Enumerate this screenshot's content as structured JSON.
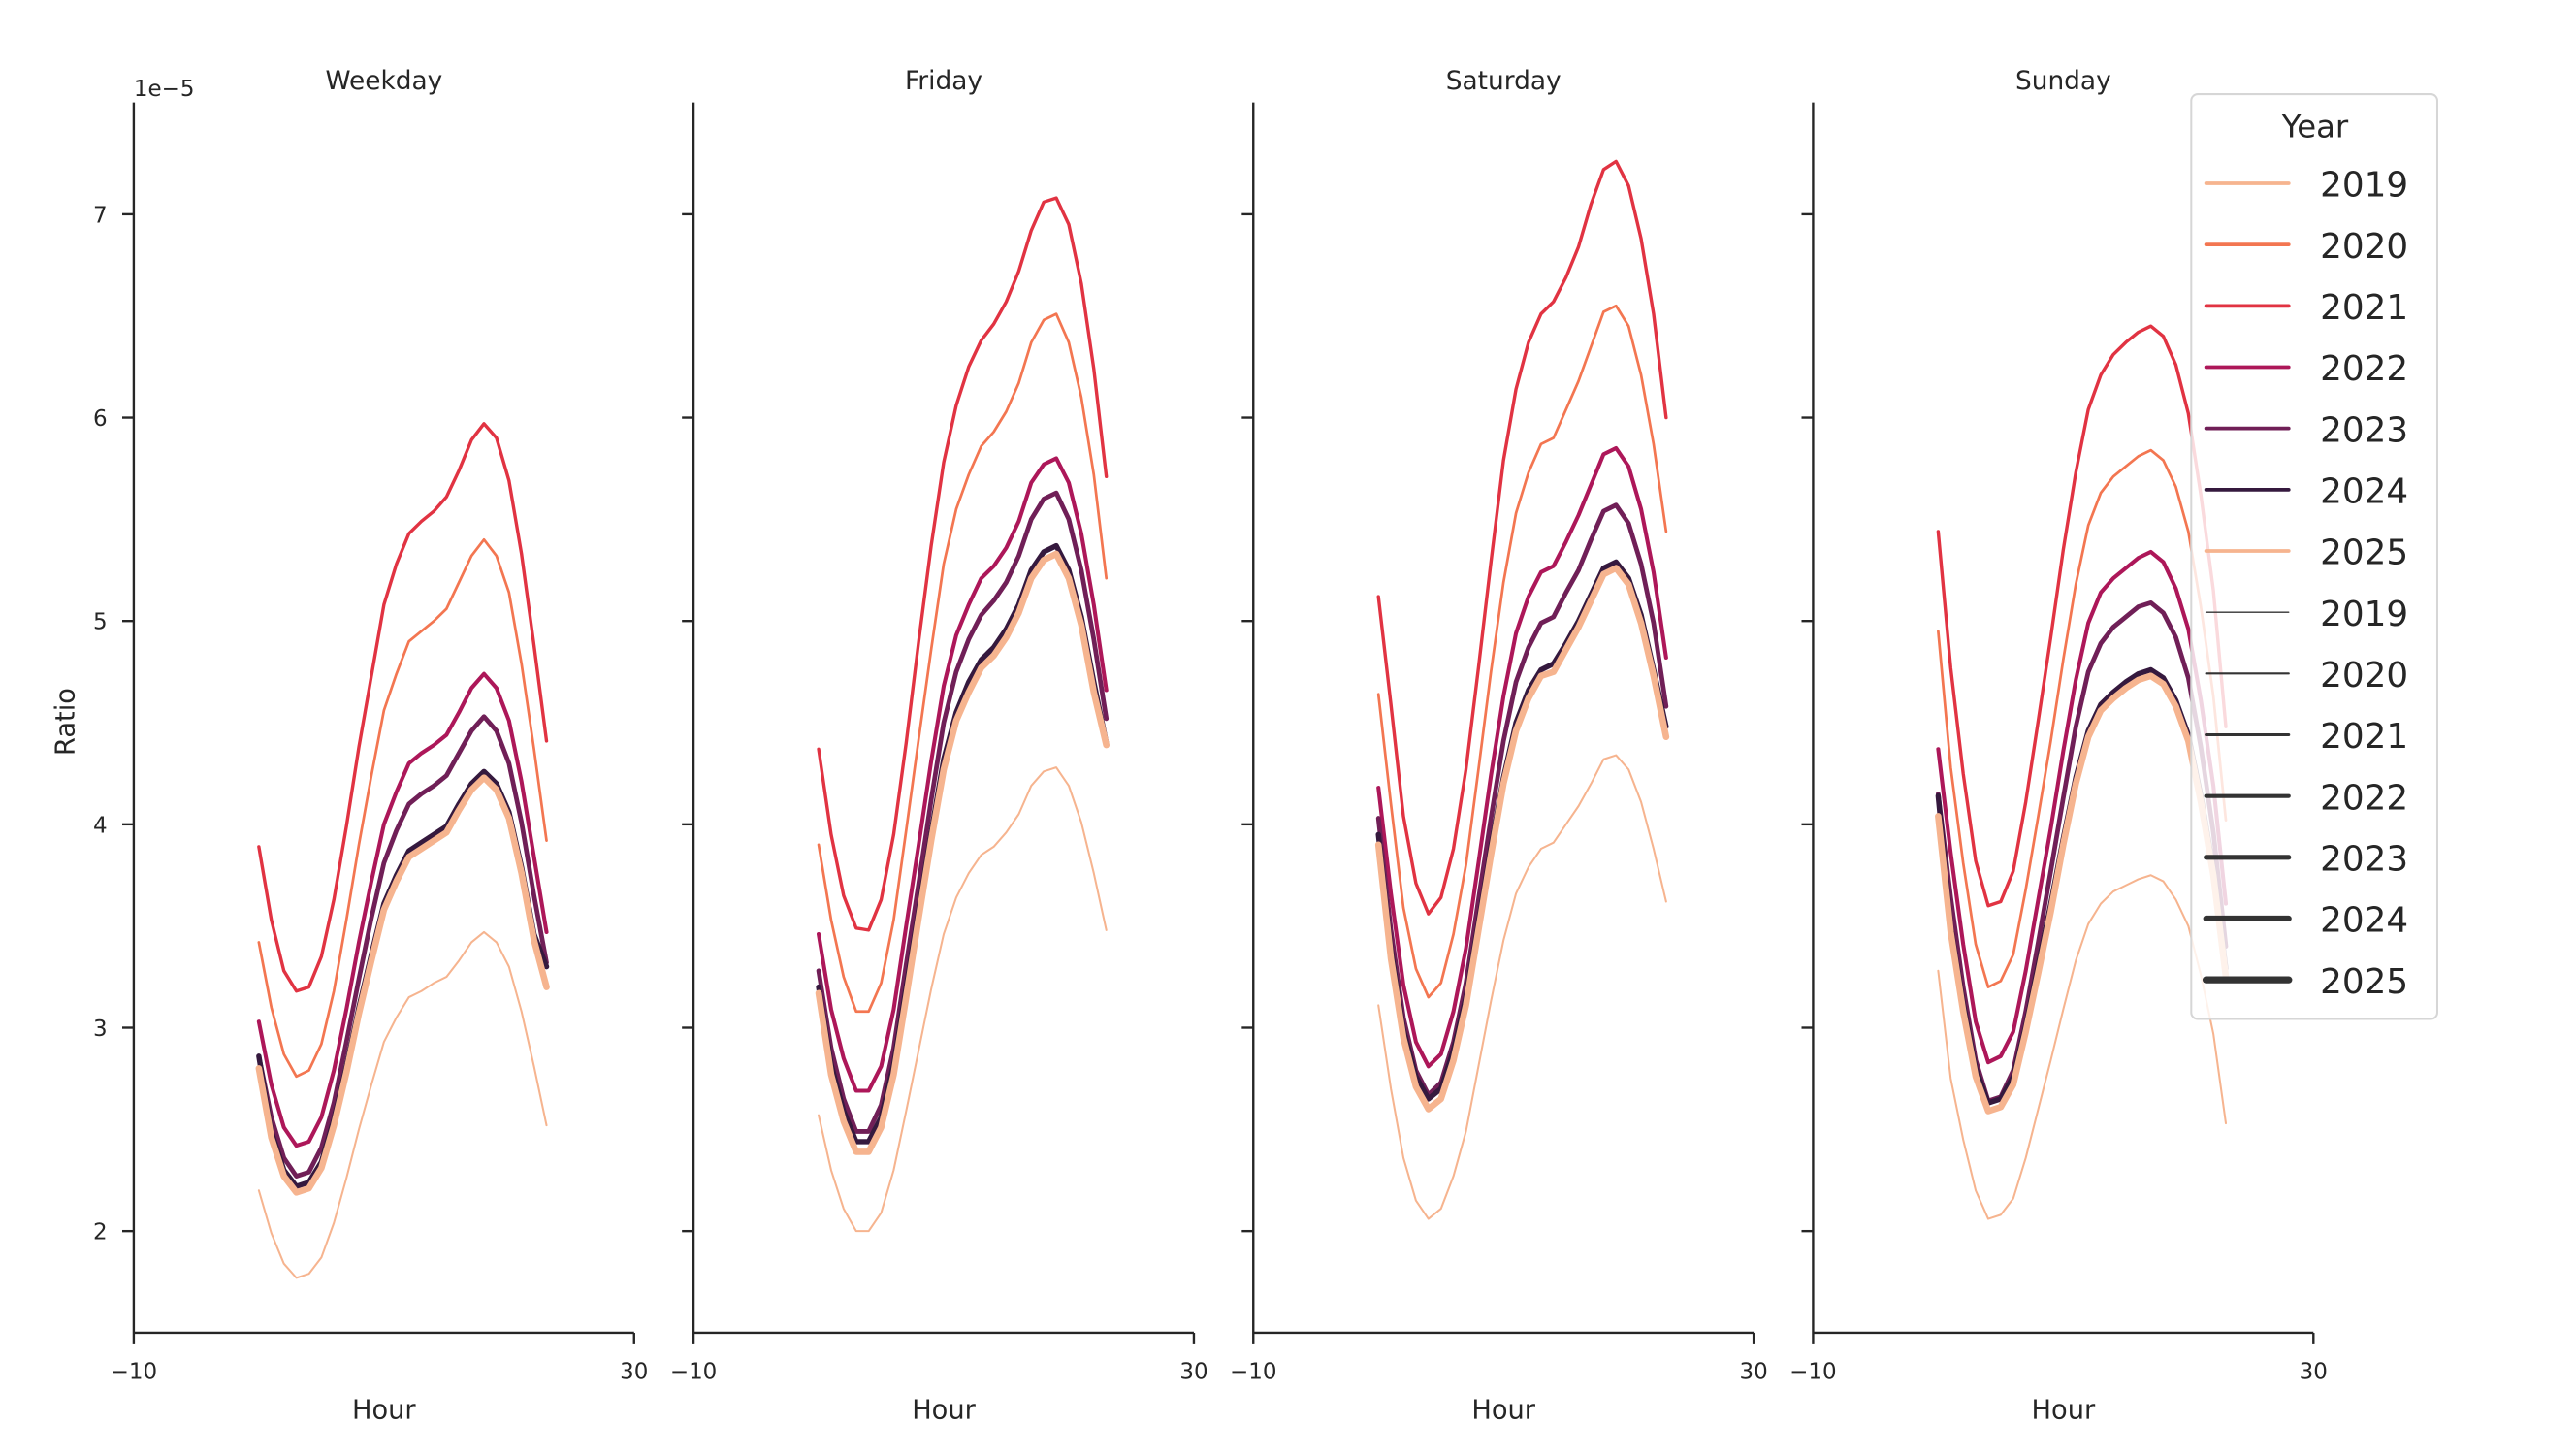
{
  "chart_data": [
    {
      "type": "line",
      "title": "Weekday",
      "xlabel": "Hour",
      "ylabel": "Ratio",
      "y_offset_label": "1e−5",
      "xlim": [
        -10,
        30
      ],
      "ylim": [
        1.5,
        7.55
      ],
      "xticks": [
        -10,
        30
      ],
      "xtick_labels": [
        "−10",
        "30"
      ],
      "yticks": [
        2,
        3,
        4,
        5,
        6,
        7
      ],
      "ytick_labels": [
        "2",
        "3",
        "4",
        "5",
        "6",
        "7"
      ],
      "grid": false,
      "x": [
        0,
        1,
        2,
        3,
        4,
        5,
        6,
        7,
        8,
        9,
        10,
        11,
        12,
        13,
        14,
        15,
        16,
        17,
        18,
        19,
        20,
        21,
        22,
        23
      ],
      "series": [
        {
          "name": "2019",
          "values": [
            2.2,
            1.99,
            1.84,
            1.77,
            1.79,
            1.87,
            2.04,
            2.26,
            2.5,
            2.72,
            2.93,
            3.05,
            3.15,
            3.18,
            3.22,
            3.25,
            3.33,
            3.42,
            3.47,
            3.42,
            3.3,
            3.08,
            2.81,
            2.52
          ]
        },
        {
          "name": "2020",
          "values": [
            3.42,
            3.1,
            2.87,
            2.76,
            2.79,
            2.92,
            3.18,
            3.53,
            3.9,
            4.24,
            4.56,
            4.74,
            4.9,
            4.95,
            5.0,
            5.06,
            5.19,
            5.32,
            5.4,
            5.32,
            5.14,
            4.79,
            4.37,
            3.92
          ]
        },
        {
          "name": "2021",
          "values": [
            3.89,
            3.53,
            3.28,
            3.18,
            3.2,
            3.35,
            3.63,
            3.99,
            4.38,
            4.73,
            5.08,
            5.28,
            5.43,
            5.49,
            5.54,
            5.61,
            5.74,
            5.89,
            5.97,
            5.9,
            5.69,
            5.33,
            4.88,
            4.41
          ]
        },
        {
          "name": "2022",
          "values": [
            3.03,
            2.72,
            2.51,
            2.42,
            2.44,
            2.56,
            2.79,
            3.09,
            3.42,
            3.72,
            4.0,
            4.16,
            4.3,
            4.35,
            4.39,
            4.44,
            4.55,
            4.67,
            4.74,
            4.67,
            4.51,
            4.21,
            3.84,
            3.47
          ]
        },
        {
          "name": "2023",
          "values": [
            2.86,
            2.56,
            2.36,
            2.27,
            2.29,
            2.41,
            2.63,
            2.93,
            3.24,
            3.54,
            3.81,
            3.97,
            4.1,
            4.15,
            4.19,
            4.24,
            4.35,
            4.46,
            4.53,
            4.46,
            4.3,
            4.01,
            3.65,
            3.32
          ]
        },
        {
          "name": "2024",
          "values": [
            2.86,
            2.49,
            2.3,
            2.22,
            2.24,
            2.34,
            2.55,
            2.81,
            3.1,
            3.36,
            3.61,
            3.75,
            3.87,
            3.91,
            3.95,
            3.99,
            4.1,
            4.2,
            4.26,
            4.2,
            4.06,
            3.79,
            3.46,
            3.3
          ]
        },
        {
          "name": "2025",
          "values": [
            2.8,
            2.46,
            2.27,
            2.19,
            2.21,
            2.31,
            2.52,
            2.78,
            3.07,
            3.33,
            3.58,
            3.72,
            3.84,
            3.88,
            3.92,
            3.96,
            4.07,
            4.17,
            4.23,
            4.17,
            4.03,
            3.76,
            3.43,
            3.2
          ]
        }
      ]
    },
    {
      "type": "line",
      "title": "Friday",
      "xlabel": "Hour",
      "xlim": [
        -10,
        30
      ],
      "ylim": [
        1.5,
        7.55
      ],
      "xticks": [
        -10,
        30
      ],
      "xtick_labels": [
        "−10",
        "30"
      ],
      "yticks": [
        2,
        3,
        4,
        5,
        6,
        7
      ],
      "grid": false,
      "x": [
        0,
        1,
        2,
        3,
        4,
        5,
        6,
        7,
        8,
        9,
        10,
        11,
        12,
        13,
        14,
        15,
        16,
        17,
        18,
        19,
        20,
        21,
        22,
        23
      ],
      "series": [
        {
          "name": "2019",
          "values": [
            2.57,
            2.3,
            2.11,
            2.0,
            2.0,
            2.09,
            2.3,
            2.59,
            2.89,
            3.19,
            3.46,
            3.64,
            3.76,
            3.85,
            3.89,
            3.96,
            4.05,
            4.19,
            4.26,
            4.28,
            4.19,
            4.01,
            3.76,
            3.48
          ]
        },
        {
          "name": "2020",
          "values": [
            3.9,
            3.53,
            3.25,
            3.08,
            3.08,
            3.22,
            3.53,
            3.97,
            4.42,
            4.86,
            5.28,
            5.55,
            5.72,
            5.86,
            5.93,
            6.03,
            6.17,
            6.37,
            6.48,
            6.51,
            6.37,
            6.1,
            5.72,
            5.21
          ]
        },
        {
          "name": "2021",
          "values": [
            4.37,
            3.95,
            3.65,
            3.49,
            3.48,
            3.63,
            3.95,
            4.4,
            4.9,
            5.37,
            5.78,
            6.06,
            6.25,
            6.38,
            6.46,
            6.57,
            6.72,
            6.92,
            7.06,
            7.08,
            6.95,
            6.66,
            6.24,
            5.71
          ]
        },
        {
          "name": "2022",
          "values": [
            3.46,
            3.09,
            2.85,
            2.69,
            2.69,
            2.81,
            3.09,
            3.5,
            3.9,
            4.31,
            4.68,
            4.93,
            5.08,
            5.21,
            5.27,
            5.36,
            5.49,
            5.68,
            5.77,
            5.8,
            5.68,
            5.43,
            5.08,
            4.66
          ]
        },
        {
          "name": "2023",
          "values": [
            3.28,
            2.9,
            2.65,
            2.49,
            2.49,
            2.62,
            2.9,
            3.31,
            3.71,
            4.12,
            4.5,
            4.75,
            4.91,
            5.03,
            5.1,
            5.19,
            5.32,
            5.5,
            5.6,
            5.63,
            5.5,
            5.25,
            4.91,
            4.52
          ]
        },
        {
          "name": "2024",
          "values": [
            3.2,
            2.82,
            2.59,
            2.44,
            2.44,
            2.56,
            2.82,
            3.2,
            3.58,
            3.96,
            4.32,
            4.55,
            4.7,
            4.81,
            4.87,
            4.96,
            5.08,
            5.25,
            5.34,
            5.37,
            5.25,
            5.02,
            4.7,
            4.4
          ]
        },
        {
          "name": "2025",
          "values": [
            3.17,
            2.77,
            2.54,
            2.39,
            2.39,
            2.51,
            2.77,
            3.15,
            3.54,
            3.92,
            4.27,
            4.51,
            4.65,
            4.77,
            4.83,
            4.92,
            5.04,
            5.21,
            5.3,
            5.33,
            5.21,
            4.98,
            4.65,
            4.39
          ]
        }
      ]
    },
    {
      "type": "line",
      "title": "Saturday",
      "xlabel": "Hour",
      "xlim": [
        -10,
        30
      ],
      "ylim": [
        1.5,
        7.55
      ],
      "xticks": [
        -10,
        30
      ],
      "xtick_labels": [
        "−10",
        "30"
      ],
      "yticks": [
        2,
        3,
        4,
        5,
        6,
        7
      ],
      "grid": false,
      "x": [
        0,
        1,
        2,
        3,
        4,
        5,
        6,
        7,
        8,
        9,
        10,
        11,
        12,
        13,
        14,
        15,
        16,
        17,
        18,
        19,
        20,
        21,
        22,
        23
      ],
      "series": [
        {
          "name": "2019",
          "values": [
            3.11,
            2.7,
            2.36,
            2.15,
            2.06,
            2.11,
            2.27,
            2.49,
            2.81,
            3.13,
            3.43,
            3.66,
            3.79,
            3.88,
            3.91,
            4.0,
            4.09,
            4.2,
            4.32,
            4.34,
            4.27,
            4.11,
            3.88,
            3.62
          ]
        },
        {
          "name": "2020",
          "values": [
            4.64,
            4.1,
            3.59,
            3.29,
            3.15,
            3.22,
            3.46,
            3.8,
            4.27,
            4.75,
            5.19,
            5.53,
            5.73,
            5.87,
            5.9,
            6.04,
            6.18,
            6.35,
            6.52,
            6.55,
            6.45,
            6.21,
            5.87,
            5.44
          ]
        },
        {
          "name": "2021",
          "values": [
            5.12,
            4.59,
            4.04,
            3.71,
            3.56,
            3.64,
            3.88,
            4.27,
            4.77,
            5.29,
            5.79,
            6.14,
            6.37,
            6.51,
            6.57,
            6.69,
            6.84,
            7.05,
            7.22,
            7.26,
            7.14,
            6.88,
            6.51,
            6.0
          ]
        },
        {
          "name": "2022",
          "values": [
            4.18,
            3.66,
            3.21,
            2.93,
            2.81,
            2.87,
            3.08,
            3.39,
            3.81,
            4.24,
            4.63,
            4.94,
            5.12,
            5.24,
            5.27,
            5.39,
            5.52,
            5.67,
            5.82,
            5.85,
            5.76,
            5.55,
            5.24,
            4.82
          ]
        },
        {
          "name": "2023",
          "values": [
            4.03,
            3.48,
            3.05,
            2.79,
            2.67,
            2.73,
            2.93,
            3.22,
            3.63,
            4.03,
            4.41,
            4.7,
            4.87,
            4.99,
            5.02,
            5.14,
            5.25,
            5.4,
            5.54,
            5.57,
            5.48,
            5.28,
            4.99,
            4.58
          ]
        },
        {
          "name": "2024",
          "values": [
            3.95,
            3.39,
            2.99,
            2.76,
            2.65,
            2.7,
            2.89,
            3.15,
            3.52,
            3.89,
            4.23,
            4.5,
            4.66,
            4.76,
            4.79,
            4.89,
            5.0,
            5.13,
            5.26,
            5.29,
            5.21,
            5.03,
            4.76,
            4.48
          ]
        },
        {
          "name": "2025",
          "values": [
            3.9,
            3.34,
            2.95,
            2.71,
            2.6,
            2.65,
            2.84,
            3.11,
            3.48,
            3.85,
            4.2,
            4.46,
            4.62,
            4.73,
            4.75,
            4.86,
            4.97,
            5.1,
            5.23,
            5.26,
            5.18,
            4.99,
            4.73,
            4.43
          ]
        }
      ]
    },
    {
      "type": "line",
      "title": "Sunday",
      "xlabel": "Hour",
      "xlim": [
        -10,
        30
      ],
      "ylim": [
        1.5,
        7.55
      ],
      "xticks": [
        -10,
        30
      ],
      "xtick_labels": [
        "−10",
        "30"
      ],
      "yticks": [
        2,
        3,
        4,
        5,
        6,
        7
      ],
      "grid": false,
      "x": [
        0,
        1,
        2,
        3,
        4,
        5,
        6,
        7,
        8,
        9,
        10,
        11,
        12,
        13,
        14,
        15,
        16,
        17,
        18,
        19,
        20,
        21,
        22,
        23
      ],
      "series": [
        {
          "name": "2019",
          "values": [
            3.28,
            2.75,
            2.45,
            2.2,
            2.06,
            2.08,
            2.16,
            2.36,
            2.6,
            2.84,
            3.09,
            3.33,
            3.51,
            3.61,
            3.67,
            3.7,
            3.73,
            3.75,
            3.72,
            3.63,
            3.5,
            3.26,
            2.97,
            2.53
          ]
        },
        {
          "name": "2020",
          "values": [
            4.95,
            4.28,
            3.81,
            3.41,
            3.2,
            3.23,
            3.36,
            3.68,
            4.04,
            4.41,
            4.81,
            5.18,
            5.47,
            5.63,
            5.71,
            5.76,
            5.81,
            5.84,
            5.79,
            5.66,
            5.44,
            5.07,
            4.63,
            4.02
          ]
        },
        {
          "name": "2021",
          "values": [
            5.44,
            4.77,
            4.25,
            3.82,
            3.6,
            3.62,
            3.77,
            4.11,
            4.51,
            4.92,
            5.35,
            5.73,
            6.04,
            6.21,
            6.31,
            6.37,
            6.42,
            6.45,
            6.4,
            6.26,
            6.02,
            5.62,
            5.15,
            4.48
          ]
        },
        {
          "name": "2022",
          "values": [
            4.37,
            3.86,
            3.41,
            3.03,
            2.83,
            2.86,
            2.98,
            3.28,
            3.63,
            3.98,
            4.36,
            4.71,
            4.99,
            5.14,
            5.21,
            5.26,
            5.31,
            5.34,
            5.29,
            5.16,
            4.96,
            4.61,
            4.19,
            3.61
          ]
        },
        {
          "name": "2023",
          "values": [
            4.15,
            3.64,
            3.2,
            2.84,
            2.64,
            2.66,
            2.79,
            3.08,
            3.42,
            3.77,
            4.13,
            4.48,
            4.75,
            4.89,
            4.97,
            5.02,
            5.07,
            5.09,
            5.04,
            4.92,
            4.72,
            4.38,
            3.96,
            3.4
          ]
        },
        {
          "name": "2024",
          "values": [
            4.14,
            3.5,
            3.12,
            2.8,
            2.63,
            2.65,
            2.76,
            3.01,
            3.31,
            3.61,
            3.93,
            4.23,
            4.46,
            4.59,
            4.65,
            4.7,
            4.74,
            4.76,
            4.72,
            4.61,
            4.44,
            4.14,
            3.78,
            3.29
          ]
        },
        {
          "name": "2025",
          "values": [
            4.04,
            3.47,
            3.08,
            2.76,
            2.59,
            2.61,
            2.72,
            2.98,
            3.27,
            3.57,
            3.9,
            4.2,
            4.43,
            4.56,
            4.62,
            4.67,
            4.71,
            4.73,
            4.69,
            4.58,
            4.41,
            4.11,
            3.75,
            3.25
          ]
        }
      ]
    }
  ],
  "legend": {
    "title": "Year",
    "placement": "top-right",
    "hue_entries": [
      {
        "label": "2019",
        "color": "#f6b48f"
      },
      {
        "label": "2020",
        "color": "#f37651"
      },
      {
        "label": "2021",
        "color": "#e13342"
      },
      {
        "label": "2022",
        "color": "#ad1759"
      },
      {
        "label": "2023",
        "color": "#701f57"
      },
      {
        "label": "2024",
        "color": "#35193e"
      },
      {
        "label": "2025",
        "color": "#f6b48f"
      }
    ],
    "size_entries": [
      {
        "label": "2019"
      },
      {
        "label": "2020"
      },
      {
        "label": "2021"
      },
      {
        "label": "2022"
      },
      {
        "label": "2023"
      },
      {
        "label": "2024"
      },
      {
        "label": "2025"
      }
    ],
    "size_color": "#333333"
  }
}
